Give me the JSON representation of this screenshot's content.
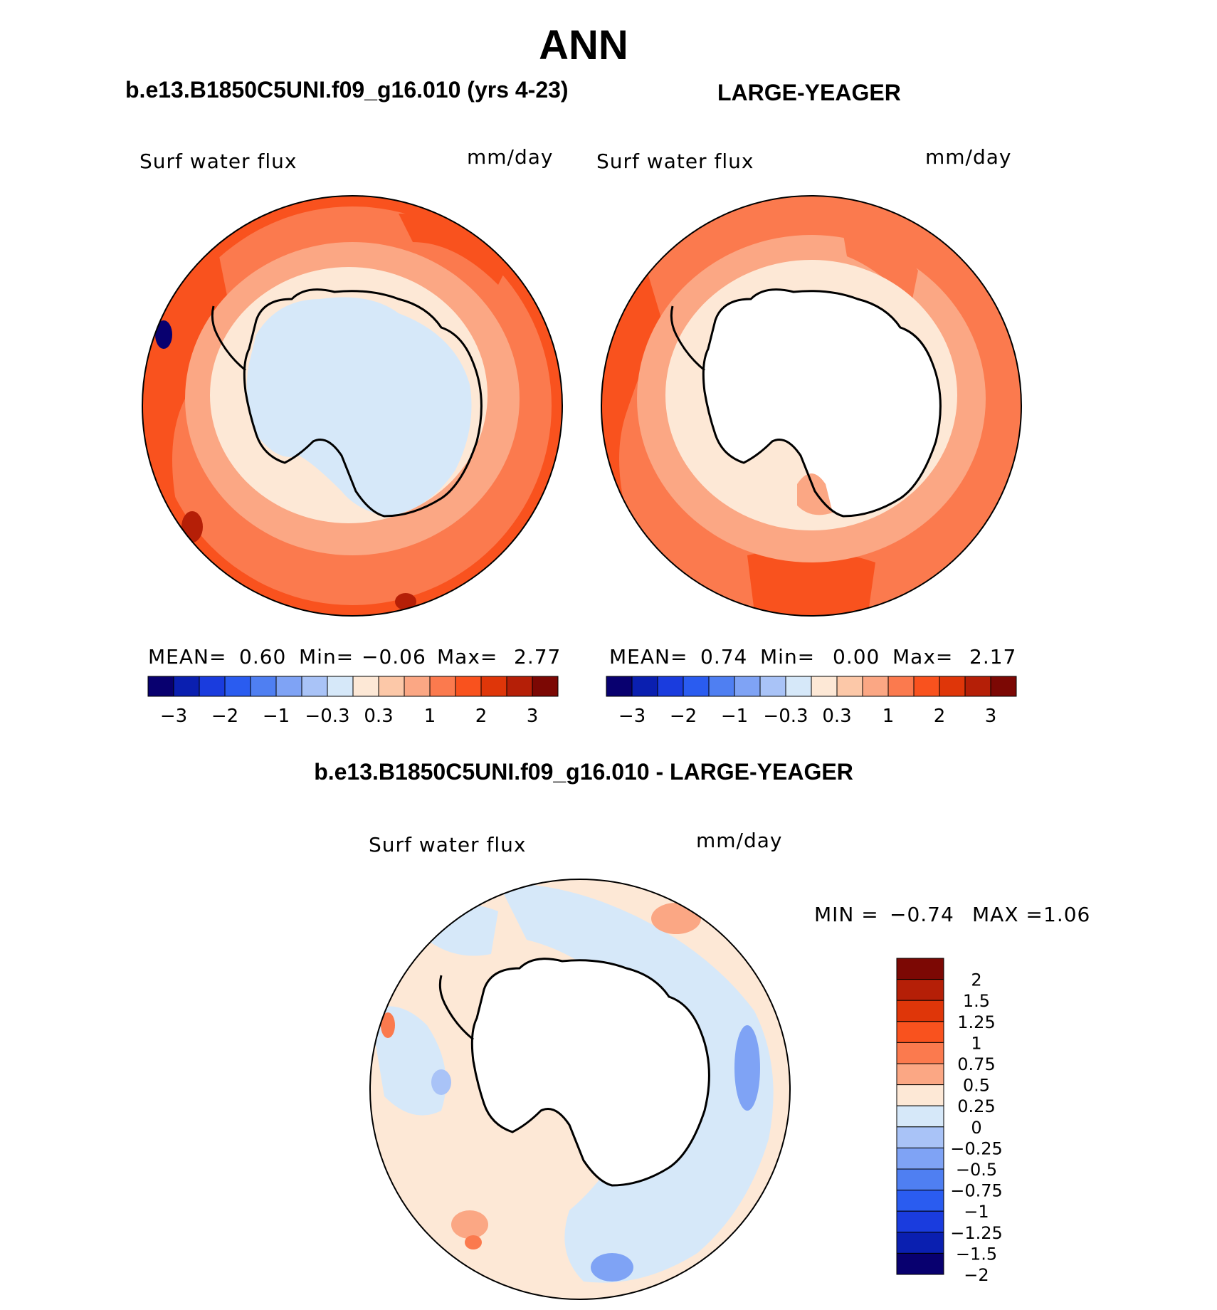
{
  "title": "ANN",
  "left_panel": {
    "case_name": "b.e13.B1850C5UNI.f09_g16.010 (yrs 4-23)",
    "variable": "Surf  water  flux",
    "units": "mm/day",
    "stats": {
      "mean_label": "MEAN=",
      "mean": "0.60",
      "min_label": "Min=",
      "min": "−0.06",
      "max_label": "Max=",
      "max": "2.77"
    }
  },
  "right_panel": {
    "case_name": "LARGE-YEAGER",
    "variable": "Surf  water  flux",
    "units": "mm/day",
    "stats": {
      "mean_label": "MEAN=",
      "mean": "0.74",
      "min_label": "Min=",
      "min": "0.00",
      "max_label": "Max=",
      "max": "2.17"
    }
  },
  "top_colorbar": {
    "colors": [
      "#08006f",
      "#0a1fb0",
      "#1a3cde",
      "#2a5cf0",
      "#4f7ff2",
      "#7fa3f5",
      "#a9c3f7",
      "#d6e8f9",
      "#fde8d6",
      "#fcc8a8",
      "#fba784",
      "#fb7a4e",
      "#f9521e",
      "#df3609",
      "#b51f07",
      "#7c0804"
    ],
    "tick_labels": [
      "−3",
      "−2",
      "−1",
      "−0.3",
      "0.3",
      "1",
      "2",
      "3"
    ]
  },
  "diff_panel": {
    "title": "b.e13.B1850C5UNI.f09_g16.010 - LARGE-YEAGER",
    "variable": "Surf  water  flux",
    "units": "mm/day",
    "stats": {
      "min_label": "MIN  =",
      "min": "−0.74",
      "max_label": "MAX  =",
      "max": "1.06"
    }
  },
  "diff_colorbar": {
    "colors": [
      "#7c0804",
      "#b51f07",
      "#df3609",
      "#f9521e",
      "#fb7a4e",
      "#fba784",
      "#fde8d6",
      "#d6e8f9",
      "#a9c3f7",
      "#7fa3f5",
      "#4f7ff2",
      "#2a5cf0",
      "#1a3cde",
      "#0a1fb0",
      "#08006f"
    ],
    "tick_labels": [
      "2",
      "1.5",
      "1.25",
      "1",
      "0.75",
      "0.5",
      "0.25",
      "0",
      "−0.25",
      "−0.5",
      "−0.75",
      "−1",
      "−1.25",
      "−1.5",
      "−2"
    ]
  },
  "colors": {
    "land": "#ffffff",
    "coast": "#000000"
  }
}
